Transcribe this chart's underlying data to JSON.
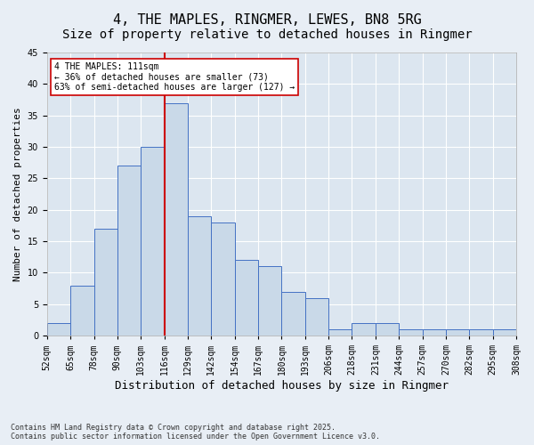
{
  "title1": "4, THE MAPLES, RINGMER, LEWES, BN8 5RG",
  "title2": "Size of property relative to detached houses in Ringmer",
  "xlabel": "Distribution of detached houses by size in Ringmer",
  "ylabel": "Number of detached properties",
  "bin_labels": [
    "52sqm",
    "65sqm",
    "78sqm",
    "90sqm",
    "103sqm",
    "116sqm",
    "129sqm",
    "142sqm",
    "154sqm",
    "167sqm",
    "180sqm",
    "193sqm",
    "206sqm",
    "218sqm",
    "231sqm",
    "244sqm",
    "257sqm",
    "270sqm",
    "282sqm",
    "295sqm",
    "308sqm"
  ],
  "values": [
    2,
    8,
    17,
    27,
    30,
    37,
    19,
    18,
    12,
    11,
    7,
    6,
    1,
    2,
    2,
    1,
    1,
    1,
    1,
    1
  ],
  "bar_color": "#c9d9e8",
  "bar_edge_color": "#4472c4",
  "vline_color": "#cc0000",
  "annotation_text": "4 THE MAPLES: 111sqm\n← 36% of detached houses are smaller (73)\n63% of semi-detached houses are larger (127) →",
  "annotation_box_color": "#ffffff",
  "annotation_box_edge": "#cc0000",
  "ylim": [
    0,
    45
  ],
  "yticks": [
    0,
    5,
    10,
    15,
    20,
    25,
    30,
    35,
    40,
    45
  ],
  "background_color": "#e8eef5",
  "plot_background": "#dce6f0",
  "footer1": "Contains HM Land Registry data © Crown copyright and database right 2025.",
  "footer2": "Contains public sector information licensed under the Open Government Licence v3.0.",
  "title_fontsize": 11,
  "subtitle_fontsize": 10,
  "tick_fontsize": 7,
  "xlabel_fontsize": 9,
  "ylabel_fontsize": 8
}
